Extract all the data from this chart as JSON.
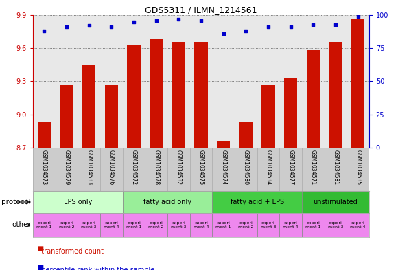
{
  "title": "GDS5311 / ILMN_1214561",
  "samples": [
    "GSM1034573",
    "GSM1034579",
    "GSM1034583",
    "GSM1034576",
    "GSM1034572",
    "GSM1034578",
    "GSM1034582",
    "GSM1034575",
    "GSM1034574",
    "GSM1034580",
    "GSM1034584",
    "GSM1034577",
    "GSM1034571",
    "GSM1034581",
    "GSM1034585"
  ],
  "transformed_counts": [
    8.93,
    9.27,
    9.45,
    9.27,
    9.63,
    9.68,
    9.66,
    9.66,
    8.76,
    8.93,
    9.27,
    9.33,
    9.58,
    9.66,
    9.87
  ],
  "percentile_ranks": [
    88,
    91,
    92,
    91,
    95,
    96,
    97,
    96,
    86,
    88,
    91,
    91,
    93,
    93,
    99
  ],
  "ylim_left": [
    8.7,
    9.9
  ],
  "ylim_right": [
    0,
    100
  ],
  "yticks_left": [
    8.7,
    9.0,
    9.3,
    9.6,
    9.9
  ],
  "yticks_right": [
    0,
    25,
    50,
    75,
    100
  ],
  "protocols": [
    {
      "label": "LPS only",
      "start": 0,
      "end": 4,
      "color": "#ccffcc"
    },
    {
      "label": "fatty acid only",
      "start": 4,
      "end": 8,
      "color": "#99ee99"
    },
    {
      "label": "fatty acid + LPS",
      "start": 8,
      "end": 12,
      "color": "#44cc44"
    },
    {
      "label": "unstimulated",
      "start": 12,
      "end": 15,
      "color": "#33bb33"
    }
  ],
  "experiments": [
    {
      "label": "experi\nment 1",
      "color": "#ee88ee"
    },
    {
      "label": "experi\nment 2",
      "color": "#ee88ee"
    },
    {
      "label": "experi\nment 3",
      "color": "#ee88ee"
    },
    {
      "label": "experi\nment 4",
      "color": "#ee88ee"
    },
    {
      "label": "experi\nment 1",
      "color": "#ee88ee"
    },
    {
      "label": "experi\nment 2",
      "color": "#ee88ee"
    },
    {
      "label": "experi\nment 3",
      "color": "#ee88ee"
    },
    {
      "label": "experi\nment 4",
      "color": "#ee88ee"
    },
    {
      "label": "experi\nment 1",
      "color": "#ee88ee"
    },
    {
      "label": "experi\nment 2",
      "color": "#ee88ee"
    },
    {
      "label": "experi\nment 3",
      "color": "#ee88ee"
    },
    {
      "label": "experi\nment 4",
      "color": "#ee88ee"
    },
    {
      "label": "experi\nment 1",
      "color": "#ee88ee"
    },
    {
      "label": "experi\nment 3",
      "color": "#ee88ee"
    },
    {
      "label": "experi\nment 4",
      "color": "#ee88ee"
    }
  ],
  "bar_color": "#cc1100",
  "dot_color": "#0000cc",
  "grid_color": "#555555",
  "bg_color": "#e8e8e8",
  "left_axis_color": "#cc0000",
  "right_axis_color": "#0000cc",
  "label_bg": "#cccccc",
  "n_samples": 15
}
